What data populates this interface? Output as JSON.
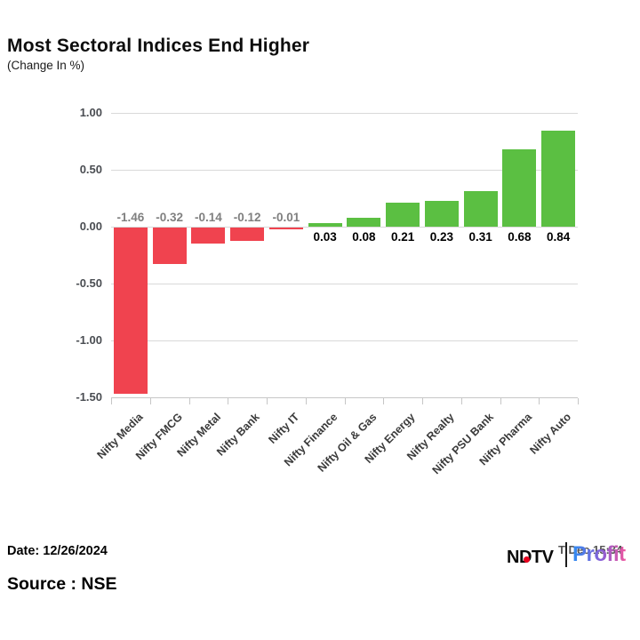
{
  "header": {
    "title": "Most Sectoral Indices End Higher",
    "subtitle": "(Change In %)"
  },
  "chart_data": {
    "type": "bar",
    "title": "Most Sectoral Indices End Higher",
    "subtitle": "(Change In %)",
    "categories": [
      "Nifty Media",
      "Nifty FMCG",
      "Nifty Metal",
      "Nifty Bank",
      "Nifty IT",
      "Nifty Finance",
      "Nifty Oil & Gas",
      "Nifty Energy",
      "Nifty Realty",
      "Nifty PSU Bank",
      "Nifty Pharma",
      "Nifty Auto"
    ],
    "values": [
      -1.46,
      -0.32,
      -0.14,
      -0.12,
      -0.01,
      0.03,
      0.08,
      0.21,
      0.23,
      0.31,
      0.68,
      0.84
    ],
    "value_labels": [
      "-1.46",
      "-0.32",
      "-0.14",
      "-0.12",
      "-0.01",
      "0.03",
      "0.08",
      "0.21",
      "0.23",
      "0.31",
      "0.68",
      "0.84"
    ],
    "xlabel": "",
    "ylabel": "",
    "ylim": [
      -1.5,
      1.0
    ],
    "yticks": [
      1.0,
      0.5,
      0.0,
      -0.5,
      -1.0,
      -1.5
    ],
    "ytick_labels": [
      "1.00",
      "0.50",
      "0.00",
      "-0.50",
      "-1.00",
      "-1.50"
    ],
    "grid": true,
    "legend": false,
    "colors": {
      "positive_bar": "#5bbf42",
      "negative_bar": "#f0434f",
      "positive_label": "#000000",
      "negative_label": "#7f7f7f",
      "gridline": "#d9d9d9"
    }
  },
  "footer": {
    "date_label": "Date: 12/26/2024",
    "source_label": "Source : NSE"
  },
  "logo": {
    "ndtv": "NDTV",
    "profit": "Profit",
    "overlay_text": "T Dec 15:34"
  }
}
